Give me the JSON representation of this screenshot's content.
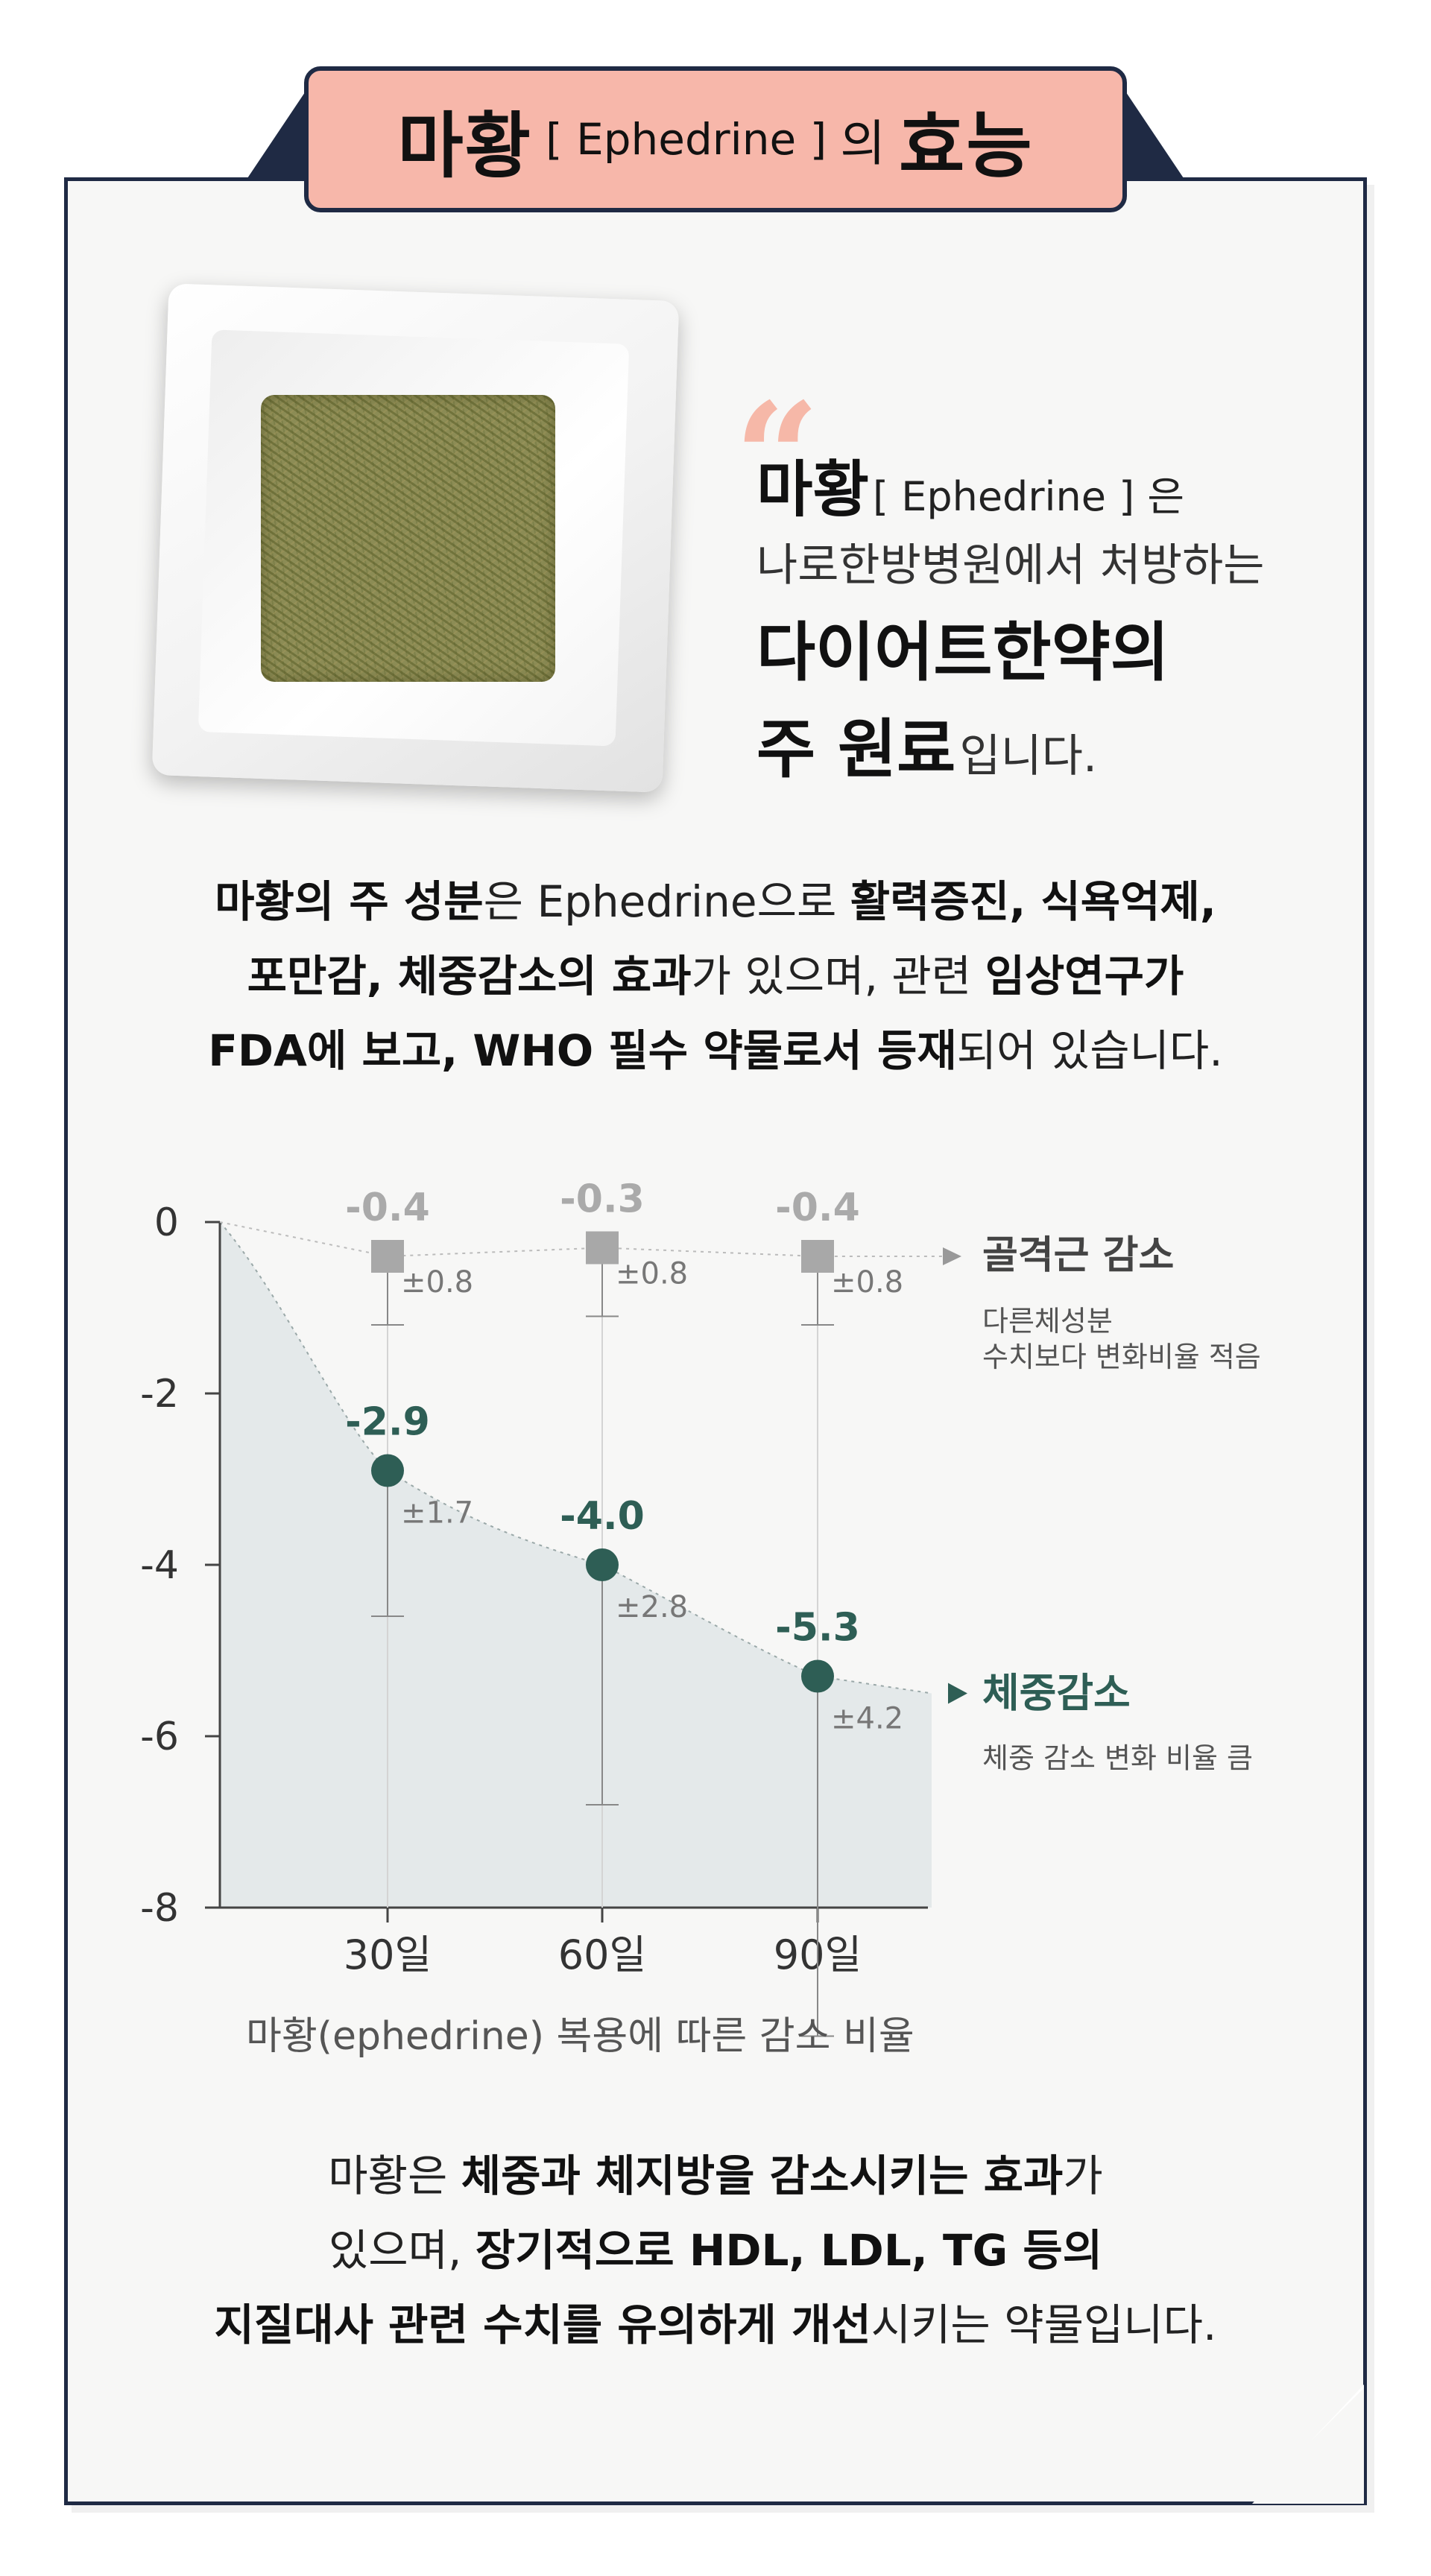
{
  "header": {
    "title_main": "마황",
    "title_bracket": "[ Ephedrine ]",
    "title_particle": "의",
    "title_end": "효능"
  },
  "quote": {
    "mark": "“",
    "line1_bold": "마황",
    "line1_rest": "[ Ephedrine ] 은",
    "line2": "나로한방병원에서 처방하는",
    "line3": "다이어트한약의",
    "line4_bold": "주 원료",
    "line4_rest": "입니다."
  },
  "paragraph1": {
    "l1": [
      {
        "t": "마황의 주 성분",
        "b": true
      },
      {
        "t": "은 Ephedrine으로 ",
        "b": false
      },
      {
        "t": "활력증진, 식욕억제,",
        "b": true
      }
    ],
    "l2": [
      {
        "t": "포만감, 체중감소의 효과",
        "b": true
      },
      {
        "t": "가 있으며, 관련 ",
        "b": false
      },
      {
        "t": "임상연구가",
        "b": true
      }
    ],
    "l3": [
      {
        "t": "FDA에 보고, WHO 필수 약물로서 등재",
        "b": true
      },
      {
        "t": "되어 있습니다.",
        "b": false
      }
    ]
  },
  "chart_data": {
    "type": "line",
    "categories": [
      "30일",
      "60일",
      "90일"
    ],
    "x": [
      30,
      60,
      90
    ],
    "ylim": [
      -8,
      0
    ],
    "yticks": [
      0,
      -2,
      -4,
      -6,
      -8
    ],
    "series": [
      {
        "name": "골격근 감소",
        "description": "다른체성분 수치보다 변화비율 적음",
        "color": "#a8a8a8",
        "marker": "square",
        "values": [
          -0.4,
          -0.3,
          -0.4
        ],
        "labels": [
          "-0.4",
          "-0.3",
          "-0.4"
        ],
        "errors": [
          0.8,
          0.8,
          0.8
        ],
        "error_labels": [
          "±0.8",
          "±0.8",
          "±0.8"
        ]
      },
      {
        "name": "체중감소",
        "description": "체중 감소 변화 비율 큼",
        "color": "#2e5e55",
        "marker": "circle",
        "values": [
          -2.9,
          -4.0,
          -5.3
        ],
        "labels": [
          "-2.9",
          "-4.0",
          "-5.3"
        ],
        "errors": [
          1.7,
          2.8,
          4.2
        ],
        "error_labels": [
          "±1.7",
          "±2.8",
          "±4.2"
        ]
      }
    ],
    "xlabel": "마황(ephedrine) 복용에 따른 감소 비율",
    "area_fill": "#e4e9ea"
  },
  "paragraph2": {
    "l1": [
      {
        "t": "마황은 ",
        "b": false
      },
      {
        "t": "체중과 체지방을 감소시키는 효과",
        "b": true
      },
      {
        "t": "가",
        "b": false
      }
    ],
    "l2": [
      {
        "t": "있으며, ",
        "b": false
      },
      {
        "t": "장기적으로 HDL, LDL, TG 등의",
        "b": true
      }
    ],
    "l3": [
      {
        "t": "지질대사 관련 수치를 유의하게 개선",
        "b": true
      },
      {
        "t": "시키는 약물입니다.",
        "b": false
      }
    ]
  },
  "colors": {
    "navy": "#1f2a44",
    "title_bg": "#f7b7aa",
    "quote_accent": "#f6b8a8",
    "paper": "#f7f7f6"
  }
}
